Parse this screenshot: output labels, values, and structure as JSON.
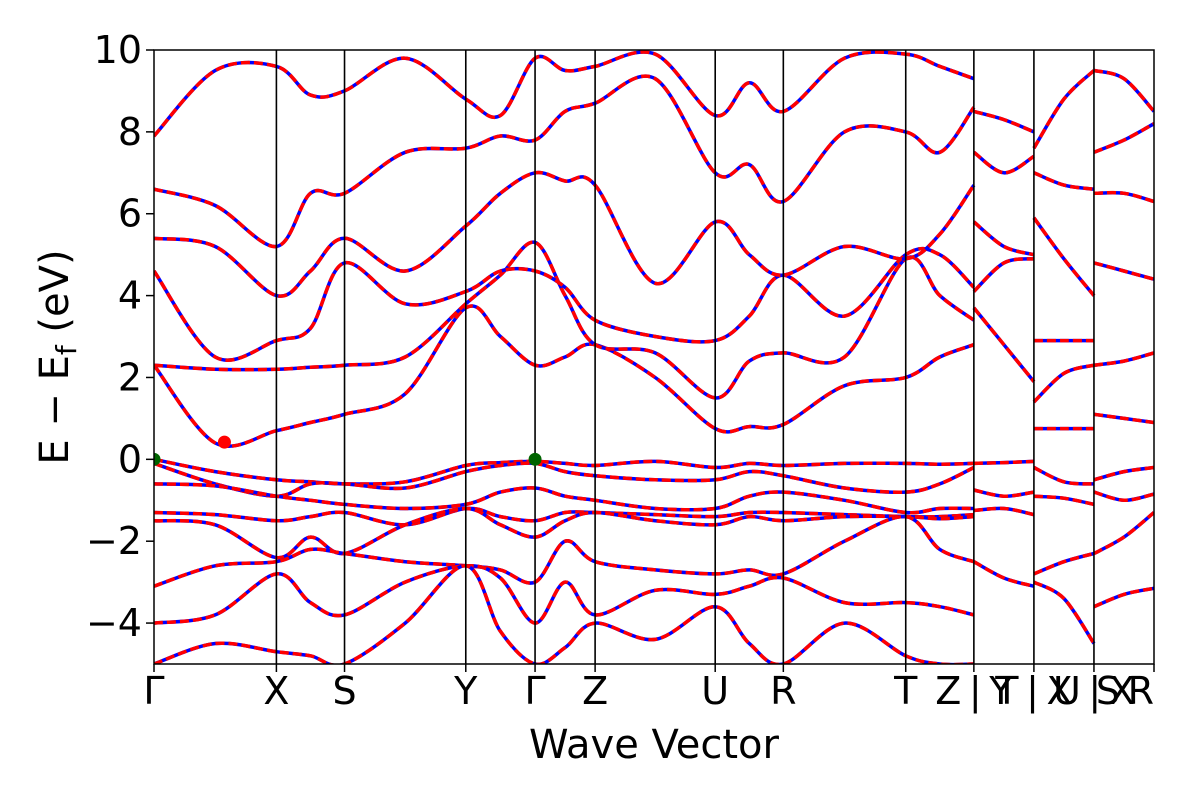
{
  "chart_data": {
    "type": "line",
    "title": "",
    "xlabel": "Wave Vector",
    "ylabel": "E − E_f (eV)",
    "ylabel_main": "E − E",
    "ylabel_sub": "f",
    "ylabel_unit": " (eV)",
    "ylim": [
      -5,
      10
    ],
    "yticks": [
      -4,
      -2,
      0,
      2,
      4,
      6,
      8,
      10
    ],
    "ytick_labels": [
      "−4",
      "−2",
      "0",
      "2",
      "4",
      "6",
      "8",
      "10"
    ],
    "grid": false,
    "legend": "none",
    "colors": {
      "band": "#ff0000",
      "band_overlay": "#0000ff",
      "vbm_marker": "#006400",
      "cbm_marker": "#ff0000",
      "kpath_line": "#000000"
    },
    "kpath": {
      "x": [
        0,
        2.12,
        3.3,
        5.4,
        6.6,
        7.64,
        9.72,
        10.9,
        13.02,
        14.2,
        15.24,
        16.28,
        17.32
      ],
      "labels": [
        "Γ",
        "X",
        "S",
        "Y",
        "Γ",
        "Z",
        "U",
        "R",
        "T",
        "Z | Y",
        "T | X",
        "U | X",
        "S R"
      ],
      "label_text": [
        "Γ",
        "X",
        "S",
        "Y",
        "Γ",
        "Z",
        "U",
        "R",
        "T",
        "Z | Y",
        "T | X",
        "U | X",
        "S R"
      ]
    },
    "series": [
      {
        "x": [
          0,
          1.06,
          2.12,
          2.71,
          3.3,
          4.35,
          5.4,
          6.0,
          6.6,
          7.12,
          7.64,
          8.68,
          9.72,
          10.31,
          10.9,
          11.96,
          13.02,
          13.61,
          14.2
        ],
        "values": [
          0.0,
          -0.3,
          -0.5,
          -0.55,
          -0.6,
          -0.55,
          -0.15,
          -0.08,
          -0.05,
          -0.1,
          -0.15,
          -0.05,
          -0.2,
          -0.1,
          -0.15,
          -0.1,
          -0.1,
          -0.12,
          -0.1
        ]
      },
      {
        "x": [
          0,
          1.06,
          2.12,
          2.71,
          3.3,
          4.35,
          5.4,
          6.0,
          6.6,
          7.12,
          7.64,
          8.68,
          9.72,
          10.31,
          10.9,
          11.96,
          13.02,
          13.61,
          14.2
        ],
        "values": [
          -0.1,
          -0.6,
          -0.9,
          -0.6,
          -0.6,
          -0.7,
          -0.3,
          -0.15,
          -0.1,
          -0.3,
          -0.4,
          -0.5,
          -0.5,
          -0.3,
          -0.4,
          -0.7,
          -0.8,
          -0.6,
          -0.2
        ]
      },
      {
        "x": [
          0,
          1.06,
          2.12,
          2.71,
          3.3,
          4.35,
          5.4,
          6.0,
          6.6,
          7.12,
          7.64,
          8.68,
          9.72,
          10.31,
          10.9,
          11.96,
          13.02,
          13.61,
          14.2
        ],
        "values": [
          -0.6,
          -0.65,
          -0.9,
          -1.0,
          -1.1,
          -1.2,
          -1.1,
          -0.8,
          -0.7,
          -0.9,
          -1.0,
          -1.2,
          -1.2,
          -0.9,
          -0.8,
          -1.0,
          -1.3,
          -1.2,
          -1.2
        ]
      },
      {
        "x": [
          0,
          1.06,
          2.12,
          2.71,
          3.3,
          4.35,
          5.4,
          6.0,
          6.6,
          7.12,
          7.64,
          8.68,
          9.72,
          10.31,
          10.9,
          11.96,
          13.02,
          13.61,
          14.2
        ],
        "values": [
          -1.3,
          -1.35,
          -1.5,
          -1.4,
          -1.3,
          -1.6,
          -1.2,
          -1.4,
          -1.5,
          -1.3,
          -1.3,
          -1.35,
          -1.4,
          -1.3,
          -1.3,
          -1.35,
          -1.4,
          -1.4,
          -1.35
        ]
      },
      {
        "x": [
          0,
          1.06,
          2.12,
          2.71,
          3.3,
          4.35,
          5.4,
          6.0,
          6.6,
          7.12,
          7.64,
          8.68,
          9.72,
          10.31,
          10.9,
          11.96,
          13.02,
          13.61,
          14.2
        ],
        "values": [
          -1.5,
          -1.6,
          -2.4,
          -1.9,
          -2.3,
          -1.6,
          -1.2,
          -1.6,
          -1.9,
          -1.5,
          -1.3,
          -1.5,
          -1.6,
          -1.4,
          -1.5,
          -1.4,
          -1.4,
          -1.45,
          -1.4
        ]
      },
      {
        "x": [
          0,
          1.06,
          2.12,
          2.71,
          3.3,
          4.35,
          5.4,
          6.0,
          6.6,
          7.12,
          7.64,
          8.68,
          9.72,
          10.31,
          10.9,
          11.96,
          13.02,
          13.61,
          14.2
        ],
        "values": [
          -3.1,
          -2.6,
          -2.5,
          -2.2,
          -2.3,
          -2.5,
          -2.6,
          -2.7,
          -3.0,
          -2.0,
          -2.5,
          -2.7,
          -2.8,
          -2.7,
          -2.8,
          -2.0,
          -1.4,
          -2.2,
          -2.5
        ]
      },
      {
        "x": [
          0,
          1.06,
          2.12,
          2.71,
          3.3,
          4.35,
          5.4,
          6.0,
          6.6,
          7.12,
          7.64,
          8.68,
          9.72,
          10.31,
          10.9,
          11.96,
          13.02,
          13.61,
          14.2
        ],
        "values": [
          -4.0,
          -3.8,
          -2.8,
          -3.5,
          -3.8,
          -3.0,
          -2.6,
          -2.9,
          -4.0,
          -3.0,
          -3.8,
          -3.2,
          -3.3,
          -3.1,
          -2.9,
          -3.5,
          -3.5,
          -3.6,
          -3.8
        ]
      },
      {
        "x": [
          0,
          1.06,
          2.12,
          2.71,
          3.3,
          4.35,
          5.4,
          6.0,
          6.6,
          7.12,
          7.64,
          8.68,
          9.72,
          10.31,
          10.9,
          11.96,
          13.02,
          13.61,
          14.2
        ],
        "values": [
          -5.0,
          -4.5,
          -4.7,
          -4.8,
          -5.0,
          -4.0,
          -2.6,
          -4.2,
          -5.0,
          -4.6,
          -4.0,
          -4.4,
          -3.6,
          -4.5,
          -5.0,
          -4.0,
          -4.8,
          -5.0,
          -5.0
        ]
      },
      {
        "x": [
          0,
          1.06,
          2.12,
          2.71,
          3.3,
          4.35,
          5.4,
          6.0,
          6.6,
          7.12,
          7.64,
          8.68,
          9.72,
          10.31,
          10.9,
          11.96,
          13.02,
          13.61,
          14.2
        ],
        "values": [
          2.3,
          0.4,
          0.7,
          0.9,
          1.1,
          1.6,
          3.7,
          3.0,
          2.3,
          2.5,
          2.8,
          2.0,
          0.75,
          0.8,
          0.85,
          1.8,
          2.0,
          2.5,
          2.8
        ]
      },
      {
        "x": [
          0,
          1.06,
          2.12,
          2.71,
          3.3,
          4.35,
          5.4,
          6.0,
          6.6,
          7.12,
          7.64,
          8.68,
          9.72,
          10.31,
          10.9,
          11.96,
          13.02,
          13.61,
          14.2
        ],
        "values": [
          2.3,
          2.2,
          2.2,
          2.25,
          2.3,
          2.5,
          3.8,
          4.5,
          5.3,
          4.0,
          2.8,
          2.6,
          1.5,
          2.4,
          2.6,
          2.5,
          4.9,
          4.0,
          3.4
        ]
      },
      {
        "x": [
          0,
          1.06,
          2.12,
          2.71,
          3.3,
          4.35,
          5.4,
          6.0,
          6.6,
          7.12,
          7.64,
          8.68,
          9.72,
          10.31,
          10.9,
          11.96,
          13.02,
          13.61,
          14.2
        ],
        "values": [
          4.6,
          2.5,
          2.9,
          3.2,
          4.8,
          3.8,
          4.1,
          4.6,
          4.6,
          4.2,
          3.4,
          3.0,
          2.9,
          3.5,
          4.5,
          3.5,
          5.0,
          5.0,
          4.2
        ]
      },
      {
        "x": [
          0,
          1.06,
          2.12,
          2.71,
          3.3,
          4.35,
          5.4,
          6.0,
          6.6,
          7.12,
          7.64,
          8.68,
          9.72,
          10.31,
          10.9,
          11.96,
          13.02,
          13.61,
          14.2
        ],
        "values": [
          5.4,
          5.2,
          4.0,
          4.6,
          5.4,
          4.6,
          5.7,
          6.5,
          7.0,
          6.8,
          6.7,
          4.3,
          5.8,
          5.0,
          4.5,
          5.2,
          4.9,
          5.5,
          6.7
        ]
      },
      {
        "x": [
          0,
          1.06,
          2.12,
          2.71,
          3.3,
          4.35,
          5.4,
          6.0,
          6.6,
          7.12,
          7.64,
          8.68,
          9.72,
          10.31,
          10.9,
          11.96,
          13.02,
          13.61,
          14.2
        ],
        "values": [
          6.6,
          6.2,
          5.2,
          6.5,
          6.5,
          7.5,
          7.6,
          7.9,
          7.8,
          8.5,
          8.7,
          9.3,
          7.0,
          7.2,
          6.3,
          8.0,
          8.0,
          7.5,
          8.6
        ]
      },
      {
        "x": [
          0,
          1.06,
          2.12,
          2.71,
          3.3,
          4.35,
          5.4,
          6.0,
          6.6,
          7.12,
          7.64,
          8.68,
          9.72,
          10.31,
          10.9,
          11.96,
          13.02,
          13.61,
          14.2
        ],
        "values": [
          7.9,
          9.5,
          9.6,
          8.9,
          9.0,
          9.8,
          8.8,
          8.4,
          9.8,
          9.5,
          9.6,
          9.9,
          8.4,
          9.2,
          8.5,
          9.8,
          9.9,
          9.6,
          9.3
        ]
      },
      {
        "x": [
          14.2,
          14.72,
          15.24
        ],
        "values": [
          -0.1,
          -0.08,
          -0.05
        ]
      },
      {
        "x": [
          14.2,
          14.72,
          15.24
        ],
        "values": [
          -0.75,
          -0.9,
          -0.8
        ]
      },
      {
        "x": [
          14.2,
          14.72,
          15.24
        ],
        "values": [
          -1.25,
          -1.2,
          -1.35
        ]
      },
      {
        "x": [
          14.2,
          14.72,
          15.24
        ],
        "values": [
          -2.5,
          -2.9,
          -3.1
        ]
      },
      {
        "x": [
          14.2,
          14.72,
          15.24
        ],
        "values": [
          3.7,
          2.8,
          1.9
        ]
      },
      {
        "x": [
          14.2,
          14.72,
          15.24
        ],
        "values": [
          4.1,
          4.8,
          4.9
        ]
      },
      {
        "x": [
          14.2,
          14.72,
          15.24
        ],
        "values": [
          5.8,
          5.2,
          5.0
        ]
      },
      {
        "x": [
          14.2,
          14.72,
          15.24
        ],
        "values": [
          7.5,
          7.0,
          7.4
        ]
      },
      {
        "x": [
          14.2,
          14.72,
          15.24
        ],
        "values": [
          8.5,
          8.3,
          8.0
        ]
      },
      {
        "x": [
          15.24,
          15.76,
          16.28
        ],
        "values": [
          -0.2,
          -0.55,
          -0.6
        ]
      },
      {
        "x": [
          15.24,
          15.76,
          16.28
        ],
        "values": [
          -0.9,
          -0.95,
          -1.1
        ]
      },
      {
        "x": [
          15.24,
          15.76,
          16.28
        ],
        "values": [
          -2.8,
          -2.5,
          -2.3
        ]
      },
      {
        "x": [
          15.24,
          15.76,
          16.28
        ],
        "values": [
          -3.0,
          -3.4,
          -4.5
        ]
      },
      {
        "x": [
          15.24,
          15.76,
          16.28
        ],
        "values": [
          0.75,
          0.75,
          0.75
        ]
      },
      {
        "x": [
          15.24,
          15.76,
          16.28
        ],
        "values": [
          1.4,
          2.1,
          2.3
        ]
      },
      {
        "x": [
          15.24,
          15.76,
          16.28
        ],
        "values": [
          2.9,
          2.9,
          2.9
        ]
      },
      {
        "x": [
          15.24,
          15.76,
          16.28
        ],
        "values": [
          5.9,
          4.9,
          4.0
        ]
      },
      {
        "x": [
          15.24,
          15.76,
          16.28
        ],
        "values": [
          7.0,
          6.7,
          6.6
        ]
      },
      {
        "x": [
          15.24,
          15.76,
          16.28
        ],
        "values": [
          7.6,
          8.8,
          9.5
        ]
      },
      {
        "x": [
          16.28,
          16.8,
          17.32
        ],
        "values": [
          -0.5,
          -0.3,
          -0.2
        ]
      },
      {
        "x": [
          16.28,
          16.8,
          17.32
        ],
        "values": [
          -0.8,
          -1.0,
          -0.85
        ]
      },
      {
        "x": [
          16.28,
          16.8,
          17.32
        ],
        "values": [
          -2.3,
          -1.9,
          -1.3
        ]
      },
      {
        "x": [
          16.28,
          16.8,
          17.32
        ],
        "values": [
          -3.6,
          -3.3,
          -3.15
        ]
      },
      {
        "x": [
          16.28,
          16.8,
          17.32
        ],
        "values": [
          1.1,
          1.0,
          0.9
        ]
      },
      {
        "x": [
          16.28,
          16.8,
          17.32
        ],
        "values": [
          2.3,
          2.4,
          2.6
        ]
      },
      {
        "x": [
          16.28,
          16.8,
          17.32
        ],
        "values": [
          4.8,
          4.6,
          4.4
        ]
      },
      {
        "x": [
          16.28,
          16.8,
          17.32
        ],
        "values": [
          6.5,
          6.5,
          6.3
        ]
      },
      {
        "x": [
          16.28,
          16.8,
          17.32
        ],
        "values": [
          7.5,
          7.8,
          8.2
        ]
      },
      {
        "x": [
          16.28,
          16.8,
          17.32
        ],
        "values": [
          9.5,
          9.3,
          8.5
        ]
      }
    ],
    "markers": [
      {
        "kind": "VBM",
        "x": 0,
        "y": 0.0,
        "color": "#006400"
      },
      {
        "kind": "VBM",
        "x": 6.6,
        "y": 0.0,
        "color": "#006400"
      },
      {
        "kind": "CBM",
        "x": 1.22,
        "y": 0.42,
        "color": "#ff0000"
      }
    ]
  }
}
